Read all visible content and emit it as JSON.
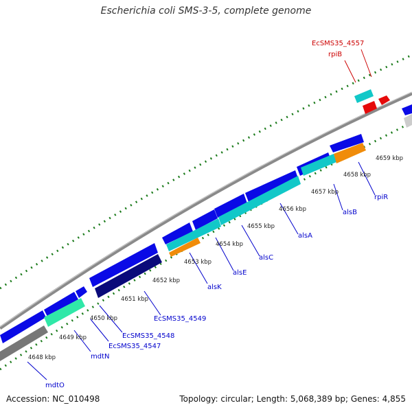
{
  "title": "Escherichia coli SMS-3-5, complete genome",
  "footer": {
    "accession": "Accession: NC_010498",
    "summary": "Topology: circular; Length: 5,068,389 bp; Genes: 4,855"
  },
  "colors": {
    "backbone": "#888888",
    "tick": "#1a7a1a",
    "gene_blue": "#0a0ae6",
    "gene_navy": "#0a0a7a",
    "gene_cyan": "#12c8c8",
    "gene_seafoam": "#30e8a8",
    "gene_orange": "#f08c0a",
    "gene_red": "#e60a0a",
    "gene_gray": "#777777",
    "label_blue": "#0000cc",
    "label_red": "#cc0000"
  },
  "kbp_ticks": [
    {
      "position_kbp": 4648,
      "text": "4648 kbp"
    },
    {
      "position_kbp": 4649,
      "text": "4649 kbp"
    },
    {
      "position_kbp": 4650,
      "text": "4650 kbp"
    },
    {
      "position_kbp": 4651,
      "text": "4651 kbp"
    },
    {
      "position_kbp": 4652,
      "text": "4652 kbp"
    },
    {
      "position_kbp": 4653,
      "text": "4653 kbp"
    },
    {
      "position_kbp": 4654,
      "text": "4654 kbp"
    },
    {
      "position_kbp": 4655,
      "text": "4655 kbp"
    },
    {
      "position_kbp": 4656,
      "text": "4656 kbp"
    },
    {
      "position_kbp": 4657,
      "text": "4657 kbp"
    },
    {
      "position_kbp": 4658,
      "text": "4658 kbp"
    },
    {
      "position_kbp": 4659,
      "text": "4659 kbp"
    }
  ],
  "gene_labels": [
    {
      "text": "mdtO",
      "color": "label_blue"
    },
    {
      "text": "mdtN",
      "color": "label_blue"
    },
    {
      "text": "EcSMS35_4547",
      "color": "label_blue"
    },
    {
      "text": "EcSMS35_4548",
      "color": "label_blue"
    },
    {
      "text": "EcSMS35_4549",
      "color": "label_blue"
    },
    {
      "text": "alsK",
      "color": "label_blue"
    },
    {
      "text": "alsE",
      "color": "label_blue"
    },
    {
      "text": "alsC",
      "color": "label_blue"
    },
    {
      "text": "alsA",
      "color": "label_blue"
    },
    {
      "text": "alsB",
      "color": "label_blue"
    },
    {
      "text": "rpiR",
      "color": "label_blue"
    },
    {
      "text": "EcSMS35_4557",
      "color": "label_red"
    },
    {
      "text": "rpiB",
      "color": "label_red"
    }
  ]
}
